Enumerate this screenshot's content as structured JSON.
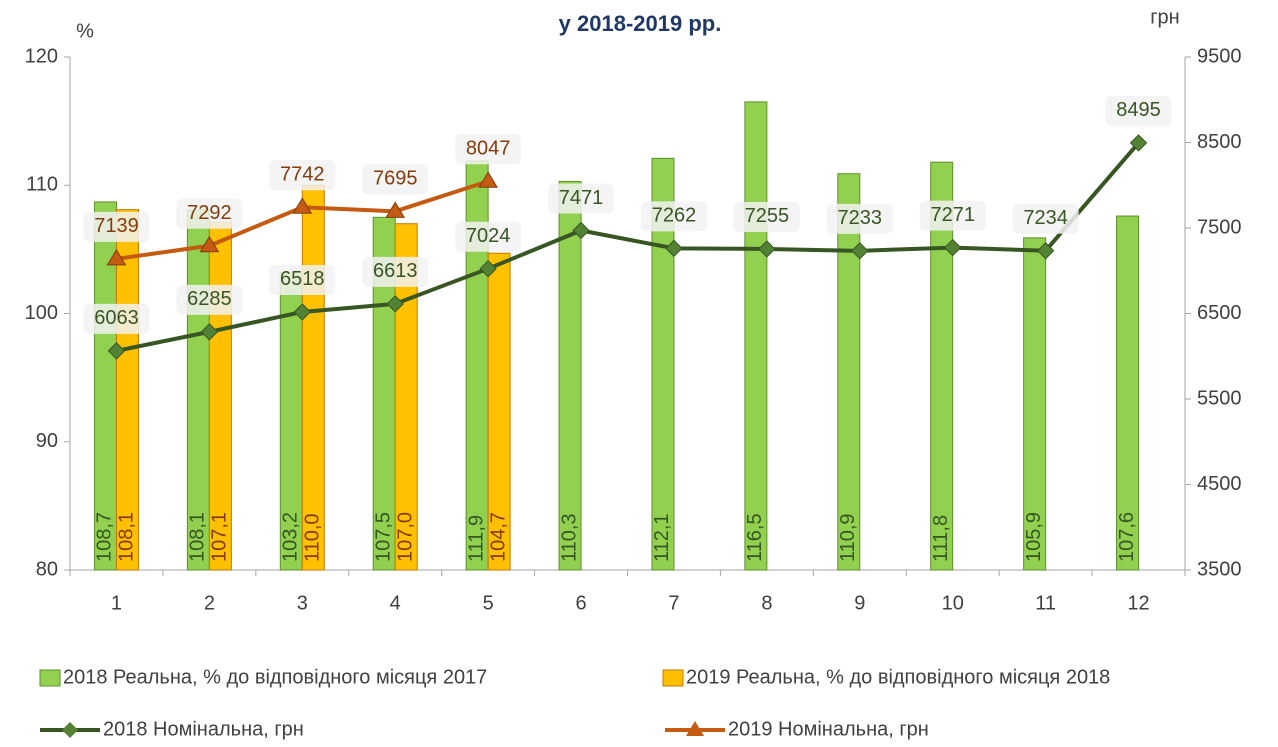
{
  "chart_data": {
    "type": "combo",
    "title": "у 2018-2019 рр.",
    "ylabel": "%",
    "y2label": "грн",
    "categories": [
      "1",
      "2",
      "3",
      "4",
      "5",
      "6",
      "7",
      "8",
      "9",
      "10",
      "11",
      "12"
    ],
    "ylim": [
      80,
      120
    ],
    "yticks": [
      80,
      90,
      100,
      110,
      120
    ],
    "y2lim": [
      3500,
      9500
    ],
    "y2ticks": [
      3500,
      4500,
      5500,
      6500,
      7500,
      8500,
      9500
    ],
    "series": [
      {
        "name": "2018 Реальна, % до відповідного місяця 2017",
        "type": "bar",
        "color": "#92d050",
        "edge": "#5e8f2c",
        "values": [
          108.7,
          108.1,
          103.2,
          107.5,
          111.9,
          110.3,
          112.1,
          116.5,
          110.9,
          111.8,
          105.9,
          107.6
        ],
        "value_labels": [
          "108,7",
          "108,1",
          "103,2",
          "107,5",
          "111,9",
          "110,3",
          "112,1",
          "116,5",
          "110,9",
          "111,8",
          "105,9",
          "107,6"
        ]
      },
      {
        "name": "2019 Реальна, % до відповідного місяця 2018",
        "type": "bar",
        "color": "#ffc000",
        "edge": "#c07a00",
        "values": [
          108.1,
          107.1,
          110.0,
          107.0,
          104.7,
          null,
          null,
          null,
          null,
          null,
          null,
          null
        ],
        "value_labels": [
          "108,1",
          "107,1",
          "110,0",
          "107,0",
          "104,7",
          null,
          null,
          null,
          null,
          null,
          null,
          null
        ]
      },
      {
        "name": "2018 Номінальна, грн",
        "type": "line",
        "axis": "y2",
        "color": "#375623",
        "marker_color": "#548235",
        "marker": "diamond",
        "values": [
          6063,
          6285,
          6518,
          6613,
          7024,
          7471,
          7262,
          7255,
          7233,
          7271,
          7234,
          8495
        ]
      },
      {
        "name": "2019 Номінальна, грн",
        "type": "line",
        "axis": "y2",
        "color": "#c55a11",
        "marker_color": "#c55a11",
        "marker": "triangle",
        "values": [
          7139,
          7292,
          7742,
          7695,
          8047,
          null,
          null,
          null,
          null,
          null,
          null,
          null
        ]
      }
    ]
  }
}
